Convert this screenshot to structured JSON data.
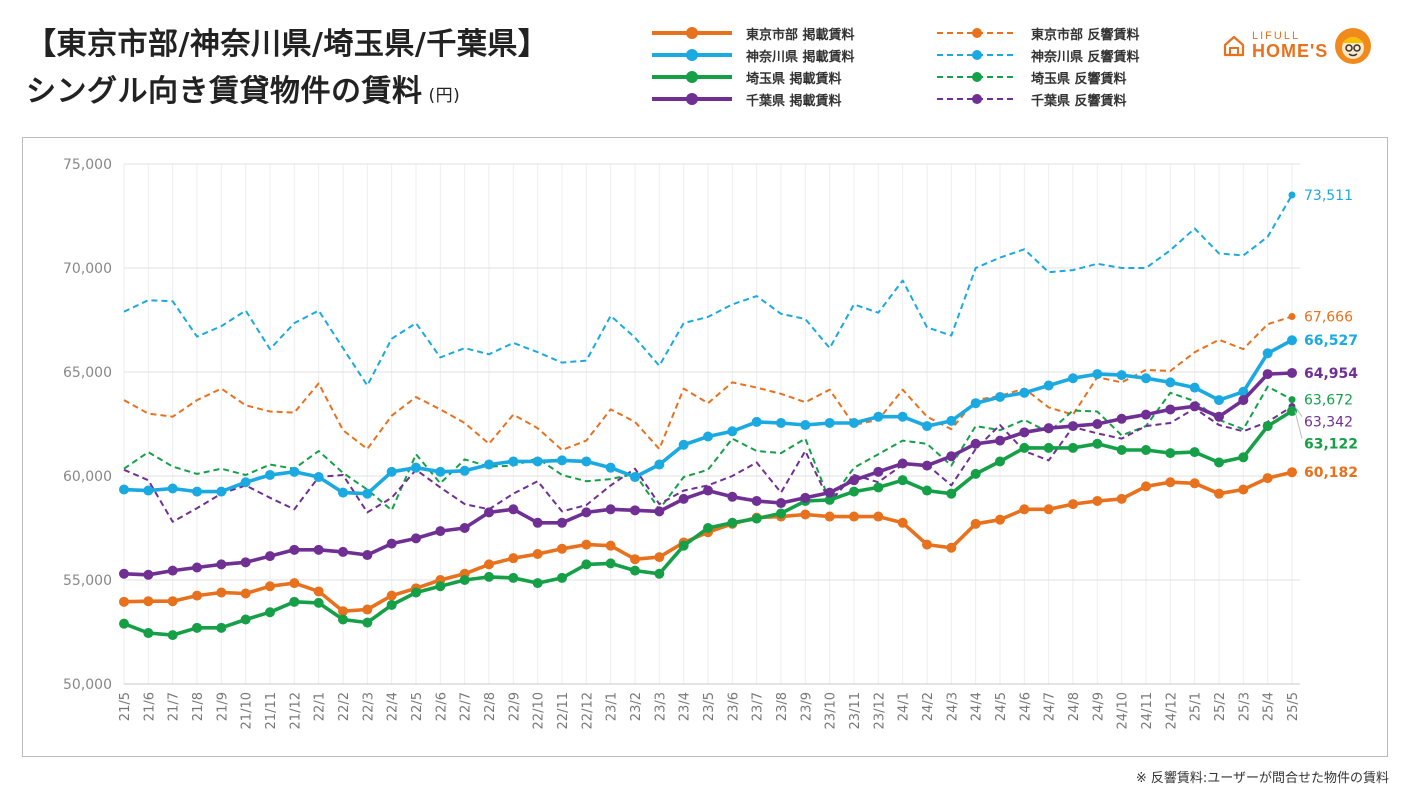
{
  "header": {
    "title_line1": "【東京市部/神奈川県/埼玉県/千葉県】",
    "title_line2": "シングル向き賃貸物件の賃料",
    "title_unit": "(円)"
  },
  "logo": {
    "line1": "LIFULL",
    "line2": "HOME'S",
    "icon": "house-icon",
    "mascot": "mascot-icon",
    "color": "#e8711e"
  },
  "footnote": "※ 反響賃料:ユーザーが問合せた物件の賃料",
  "chart_data": {
    "type": "line",
    "title": "【東京市部/神奈川県/埼玉県/千葉県】シングル向き賃貸物件の賃料",
    "xlabel": "",
    "ylabel": "(円)",
    "ylim": [
      50000,
      75000
    ],
    "yticks": [
      "50,000",
      "55,000",
      "60,000",
      "65,000",
      "70,000",
      "75,000"
    ],
    "grid": true,
    "legend_position": "top",
    "categories": [
      "21/5",
      "21/6",
      "21/7",
      "21/8",
      "21/9",
      "21/10",
      "21/11",
      "21/12",
      "22/1",
      "22/2",
      "22/3",
      "22/4",
      "22/5",
      "22/6",
      "22/7",
      "22/8",
      "22/9",
      "22/10",
      "22/11",
      "22/12",
      "23/1",
      "23/2",
      "23/3",
      "23/4",
      "23/5",
      "23/6",
      "23/7",
      "23/8",
      "23/9",
      "23/10",
      "23/11",
      "23/12",
      "24/1",
      "24/2",
      "24/3",
      "24/4",
      "24/5",
      "24/6",
      "24/7",
      "24/8",
      "24/9",
      "24/10",
      "24/11",
      "24/12",
      "25/1",
      "25/2",
      "25/3",
      "25/4",
      "25/5"
    ],
    "series": [
      {
        "name": "東京市部 掲載賃料",
        "color": "#e8711e",
        "style": "solid",
        "end_label": "60,182",
        "values": [
          53950,
          53980,
          53980,
          54250,
          54400,
          54350,
          54700,
          54850,
          54450,
          53500,
          53580,
          54250,
          54600,
          55000,
          55300,
          55750,
          56050,
          56250,
          56500,
          56700,
          56650,
          56000,
          56100,
          56800,
          57300,
          57700,
          58000,
          58050,
          58150,
          58050,
          58050,
          58050,
          57750,
          56700,
          56550,
          57700,
          57900,
          58400,
          58400,
          58650,
          58800,
          58900,
          59500,
          59700,
          59650,
          59150,
          59350,
          59900,
          60182
        ]
      },
      {
        "name": "神奈川県 掲載賃料",
        "color": "#1aa9e0",
        "style": "solid",
        "end_label": "66,527",
        "values": [
          59350,
          59300,
          59400,
          59250,
          59250,
          59700,
          60050,
          60200,
          59950,
          59200,
          59150,
          60200,
          60400,
          60200,
          60250,
          60550,
          60700,
          60700,
          60750,
          60700,
          60400,
          59950,
          60550,
          61500,
          61900,
          62150,
          62600,
          62550,
          62450,
          62550,
          62550,
          62850,
          62850,
          62400,
          62650,
          63500,
          63800,
          64000,
          64350,
          64700,
          64900,
          64850,
          64700,
          64500,
          64250,
          63650,
          64050,
          65900,
          66527
        ]
      },
      {
        "name": "埼玉県 掲載賃料",
        "color": "#15a048",
        "style": "solid",
        "end_label": "63,122",
        "values": [
          52900,
          52450,
          52350,
          52700,
          52700,
          53100,
          53450,
          53950,
          53900,
          53100,
          52950,
          53800,
          54400,
          54700,
          55000,
          55150,
          55100,
          54850,
          55100,
          55750,
          55800,
          55450,
          55300,
          56650,
          57500,
          57750,
          57950,
          58200,
          58800,
          58850,
          59250,
          59450,
          59800,
          59300,
          59150,
          60100,
          60700,
          61350,
          61350,
          61350,
          61550,
          61250,
          61250,
          61100,
          61150,
          60650,
          60900,
          62400,
          63122
        ]
      },
      {
        "name": "千葉県 掲載賃料",
        "color": "#6f2f93",
        "style": "solid",
        "end_label": "64,954",
        "values": [
          55300,
          55250,
          55450,
          55600,
          55750,
          55850,
          56150,
          56450,
          56450,
          56350,
          56200,
          56750,
          57000,
          57350,
          57500,
          58250,
          58400,
          57750,
          57750,
          58250,
          58400,
          58350,
          58300,
          58900,
          59300,
          59000,
          58800,
          58700,
          58950,
          59200,
          59800,
          60200,
          60600,
          60500,
          60950,
          61550,
          61700,
          62100,
          62300,
          62400,
          62500,
          62750,
          62950,
          63200,
          63350,
          62850,
          63650,
          64900,
          64954
        ]
      },
      {
        "name": "東京市部 反響賃料",
        "color": "#e8711e",
        "style": "dashed",
        "end_label": "67,666",
        "values": [
          63650,
          63000,
          62850,
          63650,
          64200,
          63400,
          63100,
          63050,
          64450,
          62200,
          61300,
          62900,
          63800,
          63200,
          62550,
          61550,
          62950,
          62300,
          61250,
          61700,
          63200,
          62600,
          61300,
          64200,
          63500,
          64500,
          64250,
          63950,
          63550,
          64150,
          62450,
          62700,
          64150,
          62850,
          62250,
          63650,
          63850,
          64200,
          63300,
          62950,
          64750,
          64500,
          65100,
          65050,
          65950,
          66550,
          66100,
          67300,
          67666
        ]
      },
      {
        "name": "神奈川県 反響賃料",
        "color": "#1aa9e0",
        "style": "dashed",
        "end_label": "73,511",
        "values": [
          67900,
          68450,
          68400,
          66700,
          67200,
          67950,
          66100,
          67350,
          67950,
          66150,
          64350,
          66600,
          67350,
          65700,
          66150,
          65850,
          66400,
          65950,
          65450,
          65550,
          67700,
          66650,
          65300,
          67350,
          67650,
          68250,
          68650,
          67800,
          67550,
          66150,
          68250,
          67850,
          69400,
          67150,
          66750,
          70000,
          70500,
          70900,
          69800,
          69900,
          70200,
          70000,
          70000,
          70850,
          71900,
          70700,
          70600,
          71500,
          73511
        ]
      },
      {
        "name": "埼玉県 反響賃料",
        "color": "#15a048",
        "style": "dashed",
        "end_label": "63,672",
        "values": [
          60350,
          61150,
          60450,
          60100,
          60350,
          60050,
          60550,
          60350,
          61200,
          60150,
          59350,
          58350,
          61050,
          59650,
          60800,
          60450,
          60500,
          60850,
          60050,
          59750,
          59850,
          60100,
          58400,
          59950,
          60300,
          61800,
          61200,
          61100,
          61800,
          58800,
          60400,
          61050,
          61700,
          61550,
          60500,
          62400,
          62200,
          62700,
          62100,
          63150,
          63100,
          61950,
          62400,
          64000,
          63600,
          62700,
          62250,
          64300,
          63672
        ]
      },
      {
        "name": "千葉県 反響賃料",
        "color": "#6f2f93",
        "style": "dashed",
        "end_label": "63,342",
        "values": [
          60300,
          59800,
          57800,
          58450,
          59150,
          59550,
          58950,
          58400,
          59950,
          60050,
          58250,
          58950,
          60300,
          59450,
          58650,
          58400,
          59150,
          59750,
          58300,
          58600,
          59550,
          60350,
          58650,
          59300,
          59550,
          60000,
          60650,
          59200,
          61200,
          58750,
          60050,
          59700,
          60550,
          60550,
          59550,
          61300,
          62450,
          61200,
          60750,
          62350,
          62050,
          61800,
          62400,
          62550,
          63250,
          62450,
          62150,
          62600,
          63342
        ]
      }
    ]
  }
}
